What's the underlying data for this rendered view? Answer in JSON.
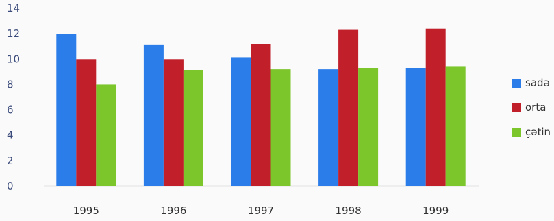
{
  "chart_data": {
    "type": "bar",
    "title": "",
    "xlabel": "",
    "ylabel": "",
    "categories": [
      "1995",
      "1996",
      "1997",
      "1998",
      "1999"
    ],
    "series": [
      {
        "name": "sadə",
        "color": "#2b7de9",
        "values": [
          12.0,
          11.1,
          10.1,
          9.2,
          9.3
        ]
      },
      {
        "name": "orta",
        "color": "#c11f2a",
        "values": [
          10.0,
          10.0,
          11.2,
          12.3,
          12.4
        ]
      },
      {
        "name": "çətin",
        "color": "#7cc52b",
        "values": [
          8.0,
          9.1,
          9.2,
          9.3,
          9.4
        ]
      }
    ],
    "ylim": [
      0,
      14
    ],
    "yticks": [
      0,
      2,
      4,
      6,
      8,
      10,
      12,
      14
    ],
    "grid": false,
    "legend_position": "right"
  }
}
